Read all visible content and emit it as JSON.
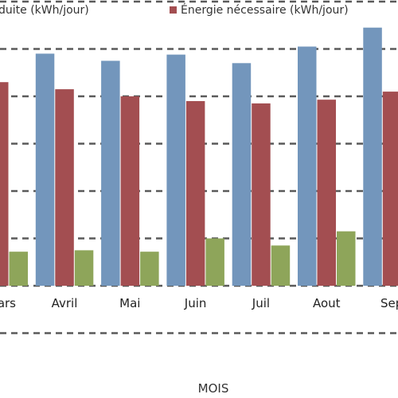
{
  "chart_data": {
    "type": "bar",
    "categories": [
      "Mars",
      "Avril",
      "Mai",
      "Juin",
      "Juil",
      "Aout",
      "Sept"
    ],
    "series": [
      {
        "name": "Énergie produite (kWh/jour)",
        "color": "#7396bc",
        "values": [
          null,
          4.9,
          4.75,
          4.88,
          4.7,
          5.05,
          5.45
        ]
      },
      {
        "name": "Énergie nécessaire (kWh/jour)",
        "color": "#a34e51",
        "values": [
          4.3,
          4.15,
          4.0,
          3.9,
          3.85,
          3.93,
          4.1
        ]
      },
      {
        "name": "",
        "color": "#8ea55a",
        "values": [
          0.72,
          0.75,
          0.72,
          1.0,
          0.85,
          1.15,
          null
        ]
      }
    ],
    "xlabel": "MOIS",
    "ylabel": "",
    "ylim": [
      -1,
      6
    ],
    "grid": true,
    "legend": "top",
    "legend_labels": [
      "duite (kWh/jour)",
      "Énergie nécessaire (kWh/jour)"
    ],
    "tick_labels": [
      "ars",
      "Avril",
      "Mai",
      "Juin",
      "Juil",
      "Aout",
      "Sep"
    ]
  }
}
